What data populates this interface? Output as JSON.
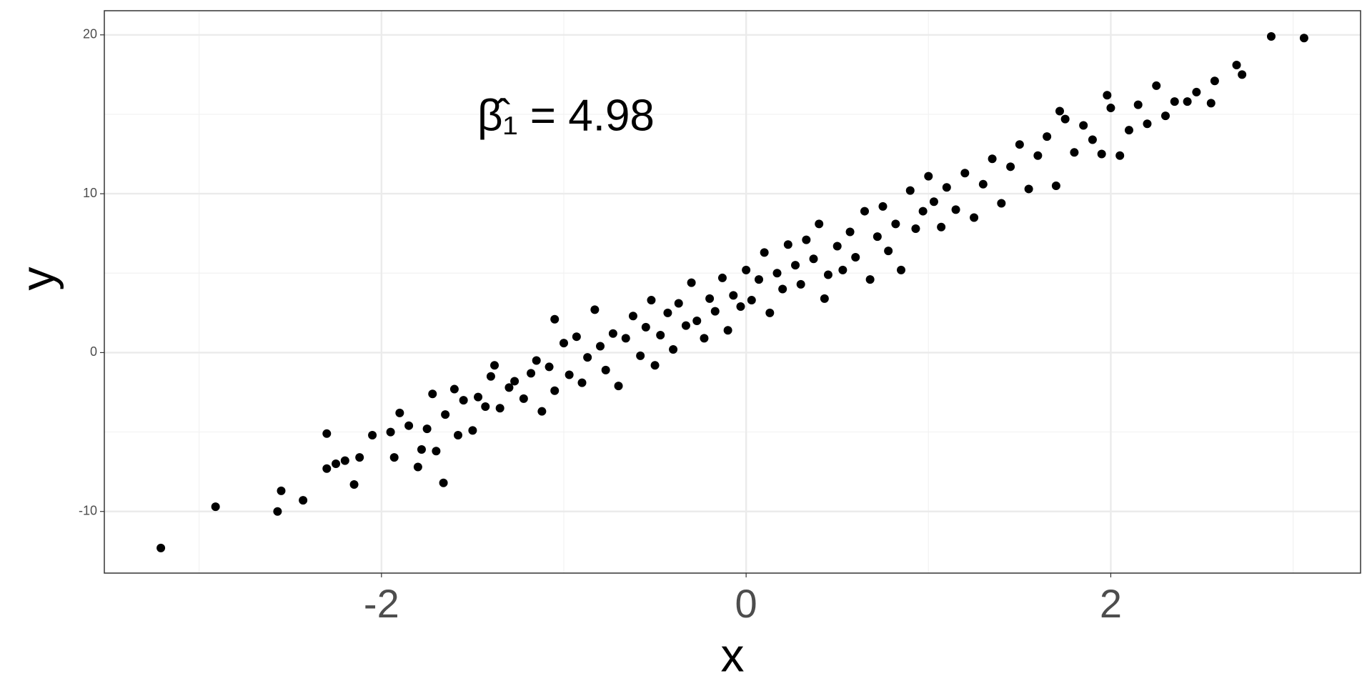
{
  "chart_data": {
    "type": "scatter",
    "annotation": "β̂₁ = 4.98",
    "x_label": "x",
    "y_label": "y",
    "xlim": [
      -3.52,
      3.37
    ],
    "ylim": [
      -13.88,
      21.52
    ],
    "xticks": [
      -2,
      0,
      2
    ],
    "yticks": [
      -10,
      0,
      10,
      20
    ],
    "x_minor_grid": [
      -3,
      -1,
      1,
      3
    ],
    "y_minor_grid": [
      -5,
      5,
      15
    ],
    "grid": true,
    "color": "#000000",
    "x": [
      -3.21,
      -2.91,
      -2.57,
      -2.55,
      -2.43,
      2.88,
      3.06,
      2.72,
      2.69,
      -1.66,
      0.43,
      -1.05,
      -2.3,
      -2.25,
      -2.2,
      -2.15,
      -2.12,
      -2.05,
      -2.3,
      -1.95,
      -1.93,
      -1.9,
      -1.85,
      -1.8,
      -1.78,
      -1.75,
      -1.72,
      -1.7,
      -1.65,
      -1.6,
      -1.58,
      -1.55,
      -1.5,
      -1.47,
      -1.43,
      -1.4,
      -1.38,
      -1.35,
      -1.3,
      -1.27,
      -1.22,
      -1.18,
      -1.15,
      -1.12,
      -1.08,
      -1.05,
      -1.0,
      -0.97,
      -0.93,
      -0.9,
      -0.87,
      -0.83,
      -0.8,
      -0.77,
      -0.73,
      -0.7,
      -0.66,
      -0.62,
      -0.58,
      -0.55,
      -0.52,
      -0.5,
      -0.47,
      -0.43,
      -0.4,
      -0.37,
      -0.33,
      -0.3,
      -0.27,
      -0.23,
      -0.2,
      -0.17,
      -0.13,
      -0.1,
      -0.07,
      -0.03,
      0.0,
      0.03,
      0.07,
      0.1,
      0.13,
      0.17,
      0.2,
      0.23,
      0.27,
      0.3,
      0.33,
      0.37,
      0.4,
      0.45,
      0.5,
      0.53,
      0.57,
      0.6,
      0.65,
      0.68,
      0.72,
      0.75,
      0.78,
      0.82,
      0.85,
      0.9,
      0.93,
      0.97,
      1.0,
      1.03,
      1.07,
      1.1,
      1.15,
      1.2,
      1.25,
      1.3,
      1.35,
      1.4,
      1.45,
      1.5,
      1.55,
      1.6,
      1.65,
      1.7,
      1.72,
      1.75,
      1.8,
      1.85,
      1.9,
      1.95,
      1.98,
      2.0,
      2.05,
      2.1,
      2.15,
      2.2,
      2.25,
      2.3,
      2.35,
      2.42,
      2.47,
      2.55,
      2.57
    ],
    "y": [
      -12.3,
      -9.7,
      -10.0,
      -8.7,
      -9.3,
      19.9,
      19.8,
      17.5,
      18.1,
      -8.2,
      3.4,
      2.1,
      -7.3,
      -7.0,
      -6.8,
      -8.3,
      -6.6,
      -5.2,
      -5.1,
      -5.0,
      -6.6,
      -3.8,
      -4.6,
      -7.2,
      -6.1,
      -4.8,
      -2.6,
      -6.2,
      -3.9,
      -2.3,
      -5.2,
      -3.0,
      -4.9,
      -2.8,
      -3.4,
      -1.5,
      -0.8,
      -3.5,
      -2.2,
      -1.8,
      -2.9,
      -1.3,
      -0.5,
      -3.7,
      -0.9,
      -2.4,
      0.6,
      -1.4,
      1.0,
      -1.9,
      -0.3,
      2.7,
      0.4,
      -1.1,
      1.2,
      -2.1,
      0.9,
      2.3,
      -0.2,
      1.6,
      3.3,
      -0.8,
      1.1,
      2.5,
      0.2,
      3.1,
      1.7,
      4.4,
      2.0,
      0.9,
      3.4,
      2.6,
      4.7,
      1.4,
      3.6,
      2.9,
      5.2,
      3.3,
      4.6,
      6.3,
      2.5,
      5.0,
      4.0,
      6.8,
      5.5,
      4.3,
      7.1,
      5.9,
      8.1,
      4.9,
      6.7,
      5.2,
      7.6,
      6.0,
      8.9,
      4.6,
      7.3,
      9.2,
      6.4,
      8.1,
      5.2,
      10.2,
      7.8,
      8.9,
      11.1,
      9.5,
      7.9,
      10.4,
      9.0,
      11.3,
      8.5,
      10.6,
      12.2,
      9.4,
      11.7,
      13.1,
      10.3,
      12.4,
      13.6,
      10.5,
      15.2,
      14.7,
      12.6,
      14.3,
      13.4,
      12.5,
      16.2,
      15.4,
      12.4,
      14.0,
      15.6,
      14.4,
      16.8,
      14.9,
      15.8,
      15.8,
      16.4,
      15.7,
      17.1
    ]
  }
}
